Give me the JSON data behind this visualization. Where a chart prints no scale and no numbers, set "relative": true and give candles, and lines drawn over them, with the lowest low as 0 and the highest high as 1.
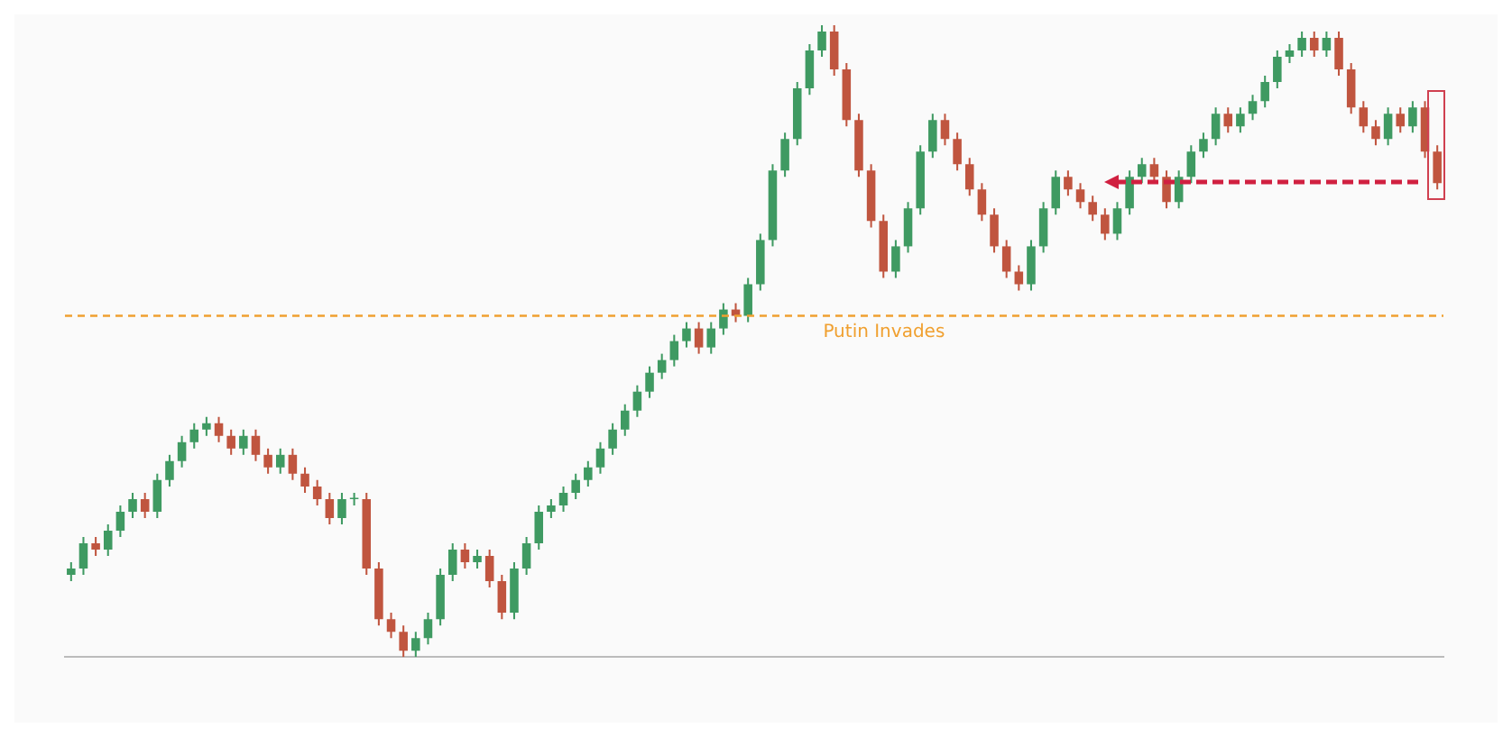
{
  "chart_data": {
    "type": "candlestick",
    "relative": true,
    "categories": [
      null,
      null,
      null,
      null,
      null,
      null,
      null,
      null,
      null,
      null,
      null,
      null,
      null,
      null,
      null,
      null,
      null,
      null,
      null,
      null,
      null,
      null,
      null,
      null,
      null,
      null,
      null,
      null,
      null,
      null,
      null,
      null,
      null,
      null,
      null,
      null,
      null,
      null,
      null,
      null,
      null,
      null,
      null,
      null,
      null,
      null,
      null,
      null,
      null,
      null,
      null,
      null,
      null,
      null,
      null,
      null,
      null,
      null,
      null,
      null,
      null,
      null,
      null,
      null,
      null,
      null,
      null,
      null,
      null,
      null,
      null,
      null,
      null,
      null,
      null,
      null,
      null,
      null,
      null,
      null,
      null,
      null,
      null,
      null,
      null,
      null,
      null,
      null,
      null,
      null,
      null,
      null,
      null,
      null,
      null,
      null,
      null,
      null,
      null,
      null,
      null,
      null,
      null,
      null,
      null,
      null,
      null,
      null,
      null,
      null,
      null,
      null
    ],
    "ohlc": [
      [
        0.13,
        0.15,
        0.12,
        0.14
      ],
      [
        0.14,
        0.19,
        0.13,
        0.18
      ],
      [
        0.18,
        0.19,
        0.16,
        0.17
      ],
      [
        0.17,
        0.21,
        0.16,
        0.2
      ],
      [
        0.2,
        0.24,
        0.19,
        0.23
      ],
      [
        0.23,
        0.26,
        0.22,
        0.25
      ],
      [
        0.25,
        0.26,
        0.22,
        0.23
      ],
      [
        0.23,
        0.29,
        0.22,
        0.28
      ],
      [
        0.28,
        0.32,
        0.27,
        0.31
      ],
      [
        0.31,
        0.35,
        0.3,
        0.34
      ],
      [
        0.34,
        0.37,
        0.33,
        0.36
      ],
      [
        0.36,
        0.38,
        0.35,
        0.37
      ],
      [
        0.37,
        0.38,
        0.34,
        0.35
      ],
      [
        0.35,
        0.36,
        0.32,
        0.33
      ],
      [
        0.33,
        0.36,
        0.32,
        0.35
      ],
      [
        0.35,
        0.36,
        0.31,
        0.32
      ],
      [
        0.32,
        0.33,
        0.29,
        0.3
      ],
      [
        0.3,
        0.33,
        0.29,
        0.32
      ],
      [
        0.32,
        0.33,
        0.28,
        0.29
      ],
      [
        0.29,
        0.3,
        0.26,
        0.27
      ],
      [
        0.27,
        0.28,
        0.24,
        0.25
      ],
      [
        0.25,
        0.26,
        0.21,
        0.22
      ],
      [
        0.22,
        0.26,
        0.21,
        0.25
      ],
      [
        0.25,
        0.26,
        0.24,
        0.25
      ],
      [
        0.25,
        0.26,
        0.13,
        0.14
      ],
      [
        0.14,
        0.15,
        0.05,
        0.06
      ],
      [
        0.06,
        0.07,
        0.03,
        0.04
      ],
      [
        0.04,
        0.05,
        0,
        0.01
      ],
      [
        0.01,
        0.04,
        0,
        0.03
      ],
      [
        0.03,
        0.07,
        0.02,
        0.06
      ],
      [
        0.06,
        0.14,
        0.05,
        0.13
      ],
      [
        0.13,
        0.18,
        0.12,
        0.17
      ],
      [
        0.17,
        0.18,
        0.14,
        0.15
      ],
      [
        0.15,
        0.17,
        0.14,
        0.16
      ],
      [
        0.16,
        0.17,
        0.11,
        0.12
      ],
      [
        0.12,
        0.13,
        0.06,
        0.07
      ],
      [
        0.07,
        0.15,
        0.06,
        0.14
      ],
      [
        0.14,
        0.19,
        0.13,
        0.18
      ],
      [
        0.18,
        0.24,
        0.17,
        0.23
      ],
      [
        0.23,
        0.25,
        0.22,
        0.24
      ],
      [
        0.24,
        0.27,
        0.23,
        0.26
      ],
      [
        0.26,
        0.29,
        0.25,
        0.28
      ],
      [
        0.28,
        0.31,
        0.27,
        0.3
      ],
      [
        0.3,
        0.34,
        0.29,
        0.33
      ],
      [
        0.33,
        0.37,
        0.32,
        0.36
      ],
      [
        0.36,
        0.4,
        0.35,
        0.39
      ],
      [
        0.39,
        0.43,
        0.38,
        0.42
      ],
      [
        0.42,
        0.46,
        0.41,
        0.45
      ],
      [
        0.45,
        0.48,
        0.44,
        0.47
      ],
      [
        0.47,
        0.51,
        0.46,
        0.5
      ],
      [
        0.5,
        0.53,
        0.49,
        0.52
      ],
      [
        0.52,
        0.53,
        0.48,
        0.49
      ],
      [
        0.49,
        0.53,
        0.48,
        0.52
      ],
      [
        0.52,
        0.56,
        0.51,
        0.55
      ],
      [
        0.55,
        0.56,
        0.53,
        0.54
      ],
      [
        0.54,
        0.6,
        0.53,
        0.59
      ],
      [
        0.59,
        0.67,
        0.58,
        0.66
      ],
      [
        0.66,
        0.78,
        0.65,
        0.77
      ],
      [
        0.77,
        0.83,
        0.76,
        0.82
      ],
      [
        0.82,
        0.91,
        0.81,
        0.9
      ],
      [
        0.9,
        0.97,
        0.89,
        0.96
      ],
      [
        0.96,
        1,
        0.95,
        0.99
      ],
      [
        0.99,
        1,
        0.92,
        0.93
      ],
      [
        0.93,
        0.94,
        0.84,
        0.85
      ],
      [
        0.85,
        0.86,
        0.76,
        0.77
      ],
      [
        0.77,
        0.78,
        0.68,
        0.69
      ],
      [
        0.69,
        0.7,
        0.6,
        0.61
      ],
      [
        0.61,
        0.66,
        0.6,
        0.65
      ],
      [
        0.65,
        0.72,
        0.64,
        0.71
      ],
      [
        0.71,
        0.81,
        0.7,
        0.8
      ],
      [
        0.8,
        0.86,
        0.79,
        0.85
      ],
      [
        0.85,
        0.86,
        0.81,
        0.82
      ],
      [
        0.82,
        0.83,
        0.77,
        0.78
      ],
      [
        0.78,
        0.79,
        0.73,
        0.74
      ],
      [
        0.74,
        0.75,
        0.69,
        0.7
      ],
      [
        0.7,
        0.71,
        0.64,
        0.65
      ],
      [
        0.65,
        0.66,
        0.6,
        0.61
      ],
      [
        0.61,
        0.62,
        0.58,
        0.59
      ],
      [
        0.59,
        0.66,
        0.58,
        0.65
      ],
      [
        0.65,
        0.72,
        0.64,
        0.71
      ],
      [
        0.71,
        0.77,
        0.7,
        0.76
      ],
      [
        0.76,
        0.77,
        0.73,
        0.74
      ],
      [
        0.74,
        0.75,
        0.71,
        0.72
      ],
      [
        0.72,
        0.73,
        0.69,
        0.7
      ],
      [
        0.7,
        0.71,
        0.66,
        0.67
      ],
      [
        0.67,
        0.72,
        0.66,
        0.71
      ],
      [
        0.71,
        0.77,
        0.7,
        0.76
      ],
      [
        0.76,
        0.79,
        0.75,
        0.78
      ],
      [
        0.78,
        0.79,
        0.75,
        0.76
      ],
      [
        0.76,
        0.77,
        0.71,
        0.72
      ],
      [
        0.72,
        0.77,
        0.71,
        0.76
      ],
      [
        0.76,
        0.81,
        0.75,
        0.8
      ],
      [
        0.8,
        0.83,
        0.79,
        0.82
      ],
      [
        0.82,
        0.87,
        0.81,
        0.86
      ],
      [
        0.86,
        0.87,
        0.83,
        0.84
      ],
      [
        0.84,
        0.87,
        0.83,
        0.86
      ],
      [
        0.86,
        0.89,
        0.85,
        0.88
      ],
      [
        0.88,
        0.92,
        0.87,
        0.91
      ],
      [
        0.91,
        0.96,
        0.9,
        0.95
      ],
      [
        0.95,
        0.97,
        0.94,
        0.96
      ],
      [
        0.96,
        0.99,
        0.95,
        0.98
      ],
      [
        0.98,
        0.99,
        0.95,
        0.96
      ],
      [
        0.96,
        0.99,
        0.95,
        0.98
      ],
      [
        0.98,
        0.99,
        0.92,
        0.93
      ],
      [
        0.93,
        0.94,
        0.86,
        0.87
      ],
      [
        0.87,
        0.88,
        0.83,
        0.84
      ],
      [
        0.84,
        0.85,
        0.81,
        0.82
      ],
      [
        0.82,
        0.87,
        0.81,
        0.86
      ],
      [
        0.86,
        0.87,
        0.83,
        0.84
      ],
      [
        0.84,
        0.88,
        0.83,
        0.87
      ],
      [
        0.87,
        0.88,
        0.79,
        0.8
      ],
      [
        0.8,
        0.81,
        0.74,
        0.75
      ]
    ],
    "ref_lines": [
      {
        "axis": "y",
        "value": 0.54,
        "label": "Putin Invades",
        "color": "#f0a030",
        "line_style": "dashed"
      }
    ]
  }
}
